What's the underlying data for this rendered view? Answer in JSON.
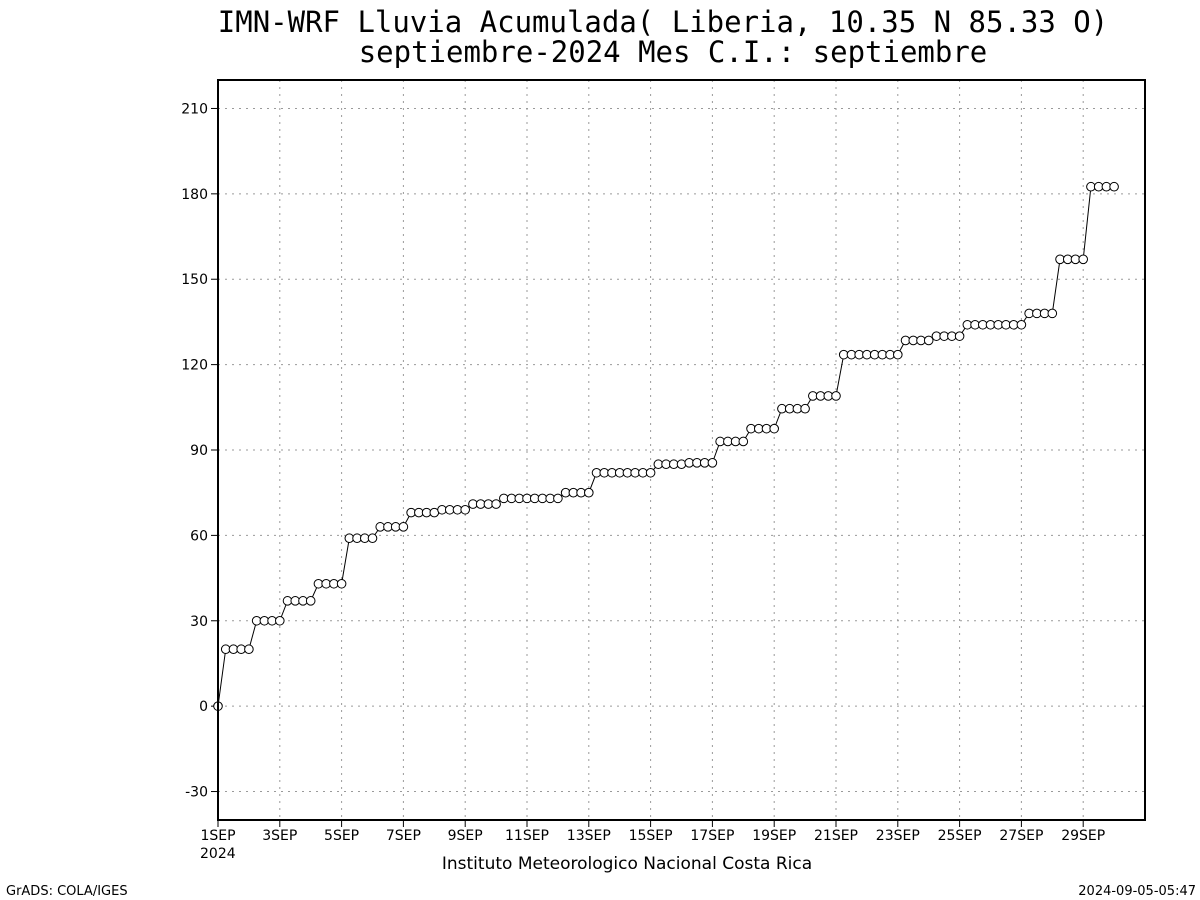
{
  "chart_data": {
    "type": "line",
    "title": "IMN-WRF  Lluvia Acumulada( Liberia, 10.35  N 85.33  O)",
    "subtitle": "septiembre-2024 Mes C.I.: septiembre",
    "xlabel": "Instituto Meteorologico Nacional Costa Rica",
    "ylabel": "",
    "ylim": [
      -40,
      220
    ],
    "yticks": [
      -30,
      0,
      30,
      60,
      90,
      120,
      150,
      180,
      210
    ],
    "xlim": [
      1,
      31
    ],
    "xticks": [
      {
        "day": 1,
        "label": "1SEP"
      },
      {
        "day": 3,
        "label": "3SEP"
      },
      {
        "day": 5,
        "label": "5SEP"
      },
      {
        "day": 7,
        "label": "7SEP"
      },
      {
        "day": 9,
        "label": "9SEP"
      },
      {
        "day": 11,
        "label": "11SEP"
      },
      {
        "day": 13,
        "label": "13SEP"
      },
      {
        "day": 15,
        "label": "15SEP"
      },
      {
        "day": 17,
        "label": "17SEP"
      },
      {
        "day": 19,
        "label": "19SEP"
      },
      {
        "day": 21,
        "label": "21SEP"
      },
      {
        "day": 23,
        "label": "23SEP"
      },
      {
        "day": 25,
        "label": "25SEP"
      },
      {
        "day": 27,
        "label": "27SEP"
      },
      {
        "day": 29,
        "label": "29SEP"
      }
    ],
    "year_label": "2024",
    "grid": true,
    "marker": "open-circle",
    "time_step_hours": 6,
    "series": [
      {
        "values": [
          0,
          20,
          20,
          20,
          20,
          30,
          30,
          30,
          30,
          37,
          37,
          37,
          37,
          43,
          43,
          43,
          43,
          59,
          59,
          59,
          59,
          63,
          63,
          63,
          63,
          68,
          68,
          68,
          68,
          69,
          69,
          69,
          69,
          71,
          71,
          71,
          71,
          73,
          73,
          73,
          73,
          73,
          73,
          73,
          73,
          75,
          75,
          75,
          75,
          82,
          82,
          82,
          82,
          82,
          82,
          82,
          82,
          85,
          85,
          85,
          85,
          85.5,
          85.5,
          85.5,
          85.5,
          93,
          93,
          93,
          93,
          97.5,
          97.5,
          97.5,
          97.5,
          104.5,
          104.5,
          104.5,
          104.5,
          109,
          109,
          109,
          109,
          123.5,
          123.5,
          123.5,
          123.5,
          123.5,
          123.5,
          123.5,
          123.5,
          128.5,
          128.5,
          128.5,
          128.5,
          130,
          130,
          130,
          130,
          134,
          134,
          134,
          134,
          134,
          134,
          134,
          134,
          138,
          138,
          138,
          138,
          157,
          157,
          157,
          157,
          182.5,
          182.5,
          182.5,
          182.5
        ]
      }
    ]
  },
  "footer": {
    "left": "GrADS: COLA/IGES",
    "right": "2024-09-05-05:47"
  }
}
